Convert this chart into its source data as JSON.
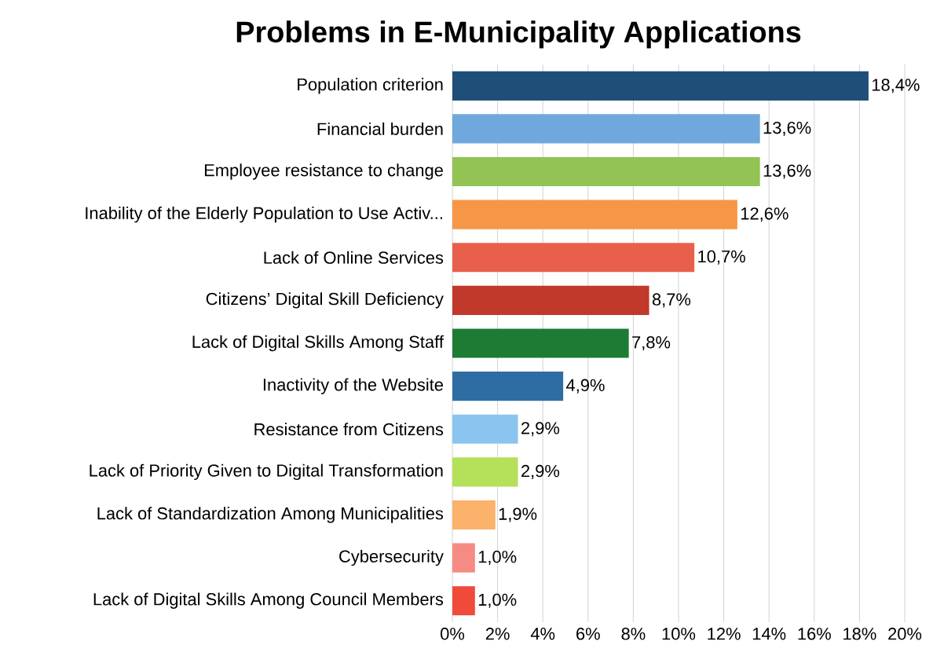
{
  "chart_data": {
    "type": "bar",
    "orientation": "horizontal",
    "title": "Problems in E-Municipality Applications",
    "categories": [
      "Population criterion",
      "Financial burden",
      "Employee resistance to change",
      "Inability of the Elderly Population to Use Activ...",
      "Lack of Online Services",
      "Citizens’ Digital Skill Deficiency",
      "Lack of Digital Skills Among Staff",
      "Inactivity of the Website",
      "Resistance from Citizens",
      "Lack of Priority Given to Digital Transformation",
      "Lack of Standardization Among Municipalities",
      "Cybersecurity",
      "Lack of Digital Skills Among Council Members"
    ],
    "values": [
      18.4,
      13.6,
      13.6,
      12.6,
      10.7,
      8.7,
      7.8,
      4.9,
      2.9,
      2.9,
      1.9,
      1.0,
      1.0
    ],
    "value_labels": [
      "18,4%",
      "13,6%",
      "13,6%",
      "12,6%",
      "10,7%",
      "8,7%",
      "7,8%",
      "4,9%",
      "2,9%",
      "2,9%",
      "1,9%",
      "1,0%",
      "1,0%"
    ],
    "colors": [
      "#1f4e79",
      "#6fa8dc",
      "#92c353",
      "#f79646",
      "#e8604c",
      "#c0392b",
      "#1e7b34",
      "#2e6da4",
      "#8cc4f0",
      "#b4e05a",
      "#fbb26a",
      "#f58b83",
      "#f04a3a"
    ],
    "xlim": [
      0,
      20
    ],
    "xticks": [
      {
        "value": 0,
        "label": "0%"
      },
      {
        "value": 2,
        "label": "2%"
      },
      {
        "value": 4,
        "label": "4%"
      },
      {
        "value": 6,
        "label": "6%"
      },
      {
        "value": 8,
        "label": "8%"
      },
      {
        "value": 10,
        "label": "10%"
      },
      {
        "value": 12,
        "label": "12%"
      },
      {
        "value": 14,
        "label": "14%"
      },
      {
        "value": 16,
        "label": "16%"
      },
      {
        "value": 18,
        "label": "18%"
      },
      {
        "value": 20,
        "label": "20%"
      }
    ],
    "grid": "x"
  }
}
